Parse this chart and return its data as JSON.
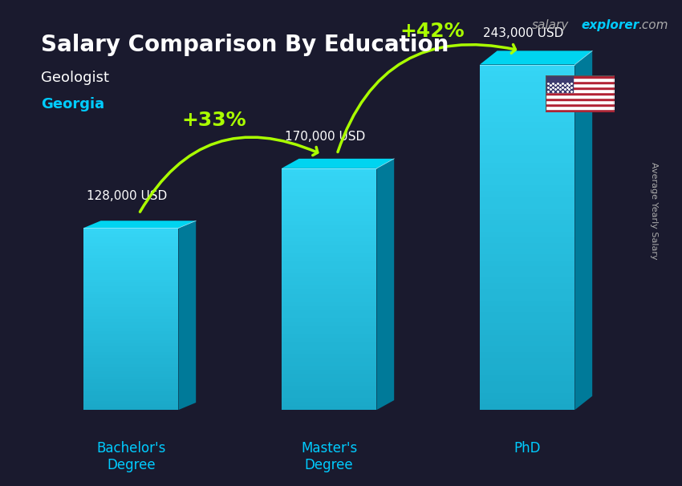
{
  "title": "Salary Comparison By Education",
  "subtitle_job": "Geologist",
  "subtitle_location": "Georgia",
  "categories": [
    "Bachelor's\nDegree",
    "Master's\nDegree",
    "PhD"
  ],
  "values": [
    128000,
    170000,
    243000
  ],
  "value_labels": [
    "128,000 USD",
    "170,000 USD",
    "243,000 USD"
  ],
  "pct_labels": [
    "+33%",
    "+42%"
  ],
  "bar_color_top": "#00d4f0",
  "bar_color_bottom": "#0099bb",
  "bar_color_side": "#007a99",
  "background_color": "#1a1a2e",
  "title_color": "#ffffff",
  "subtitle_job_color": "#ffffff",
  "subtitle_location_color": "#00ccff",
  "value_label_color": "#ffffff",
  "pct_color": "#aaff00",
  "arrow_color": "#aaff00",
  "xlabel_color": "#00ccff",
  "ylabel_text": "Average Yearly Salary",
  "ylabel_color": "#aaaaaa",
  "brand_salary": "salary",
  "brand_explorer": "explorer",
  "brand_dot_com": ".com",
  "brand_color_salary": "#aaaaaa",
  "brand_color_explorer": "#00ccff",
  "ylim": [
    0,
    280000
  ],
  "figsize": [
    8.5,
    6.06
  ]
}
